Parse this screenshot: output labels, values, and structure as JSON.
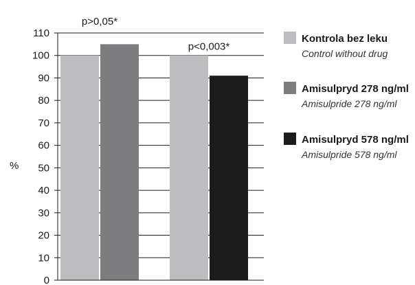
{
  "chart_data": {
    "type": "bar",
    "title": "",
    "xlabel": "",
    "ylabel": "%",
    "ylim": [
      0,
      110
    ],
    "yticks": [
      0,
      10,
      20,
      30,
      40,
      50,
      60,
      70,
      80,
      90,
      100,
      110
    ],
    "grid": true,
    "legend_position": "right",
    "groups": [
      {
        "annotation": "p>0,05*",
        "bars": [
          {
            "series": 0,
            "value": 100
          },
          {
            "series": 1,
            "value": 105
          }
        ]
      },
      {
        "annotation": "p<0,003*",
        "bars": [
          {
            "series": 0,
            "value": 100
          },
          {
            "series": 2,
            "value": 91
          }
        ]
      }
    ],
    "series": [
      {
        "name": "Kontrola bez leku",
        "name_en": "Control without drug",
        "color": "#bdbdbf"
      },
      {
        "name": "Amisulpryd 278 ng/ml",
        "name_en": "Amisulpride 278 ng/ml",
        "color": "#7d7d80"
      },
      {
        "name": "Amisulpryd 578 ng/ml",
        "name_en": "Amisulpride 578 ng/ml",
        "color": "#1c1c1c"
      }
    ]
  }
}
